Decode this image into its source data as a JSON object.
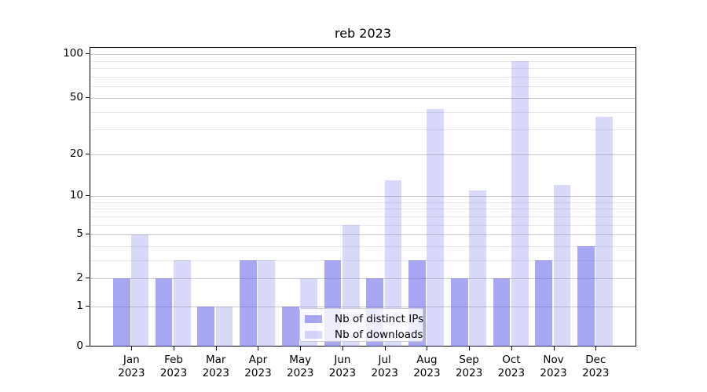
{
  "chart_data": {
    "type": "bar",
    "title": "reb 2023",
    "categories": [
      "Jan 2023",
      "Feb 2023",
      "Mar 2023",
      "Apr 2023",
      "May 2023",
      "Jun 2023",
      "Jul 2023",
      "Aug 2023",
      "Sep 2023",
      "Oct 2023",
      "Nov 2023",
      "Dec 2023"
    ],
    "series": [
      {
        "name": "Nb of distinct IPs",
        "color": "#a8a8f3",
        "base_rgba": "rgba(80,80,230,0.5)",
        "values": [
          2,
          2,
          1,
          3,
          1,
          3,
          2,
          3,
          2,
          2,
          3,
          4
        ]
      },
      {
        "name": "Nb of downloads",
        "color": "#d9d9fa",
        "base_rgba": "rgba(80,80,230,0.22)",
        "values": [
          5,
          3,
          1,
          3,
          2,
          6,
          13,
          42,
          11,
          90,
          12,
          37
        ]
      }
    ],
    "xlabel": "",
    "ylabel": "",
    "y_axis": {
      "scale": "log1p",
      "major_ticks": [
        0,
        1,
        2,
        5,
        10,
        20,
        50,
        100
      ],
      "minor_ticks": [
        3,
        4,
        6,
        7,
        8,
        9,
        30,
        40,
        60,
        70,
        80,
        90
      ],
      "range": [
        0,
        110
      ]
    },
    "x_axis": {
      "tick_line1": [
        "Jan",
        "Feb",
        "Mar",
        "Apr",
        "May",
        "Jun",
        "Jul",
        "Aug",
        "Sep",
        "Oct",
        "Nov",
        "Dec"
      ],
      "tick_line2": "2023"
    },
    "legend": {
      "position": "lower center",
      "entries": [
        "Nb of distinct IPs",
        "Nb of downloads"
      ]
    },
    "grid": true,
    "colors": {
      "bars_distinct_ips": "#a8a8f3",
      "bars_downloads": "#d9d9fa",
      "grid_major": "#c9c9c9",
      "grid_minor": "#e9e9e9",
      "spine": "#000000",
      "background": "#ffffff"
    }
  }
}
